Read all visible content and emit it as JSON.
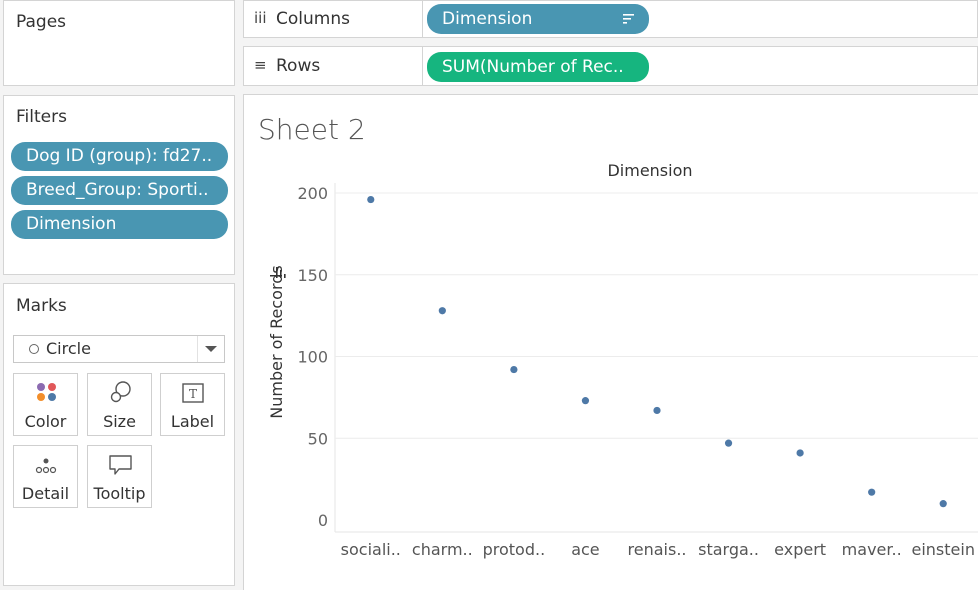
{
  "pages": {
    "title": "Pages"
  },
  "filters": {
    "title": "Filters",
    "items": [
      "Dog ID (group): fd27..",
      "Breed_Group: Sporti..",
      "Dimension"
    ]
  },
  "marks": {
    "title": "Marks",
    "type": "Circle",
    "buttons": [
      {
        "label": "Color",
        "icon": "color-icon"
      },
      {
        "label": "Size",
        "icon": "size-icon"
      },
      {
        "label": "Label",
        "icon": "label-icon"
      },
      {
        "label": "Detail",
        "icon": "detail-icon"
      },
      {
        "label": "Tooltip",
        "icon": "tooltip-icon"
      }
    ]
  },
  "shelves": {
    "columns": {
      "label": "Columns",
      "icon": "iii",
      "pill": "Dimension"
    },
    "rows": {
      "label": "Rows",
      "icon": "≡",
      "pill": "SUM(Number of Rec.."
    }
  },
  "sheet": {
    "title": "Sheet 2"
  },
  "colors": {
    "blue_pill": "#4996b2",
    "green_pill": "#16b57f",
    "mark": "#4e79a7"
  },
  "chart_data": {
    "type": "scatter",
    "title": "Dimension",
    "xlabel": "",
    "ylabel": "Number of Records",
    "categories": [
      "sociali..",
      "charm..",
      "protod..",
      "ace",
      "renais..",
      "starga..",
      "expert",
      "maver..",
      "einstein"
    ],
    "values": [
      196,
      128,
      92,
      73,
      67,
      47,
      41,
      17,
      10
    ],
    "yticks": [
      0,
      50,
      100,
      150,
      200
    ],
    "ylim": [
      0,
      200
    ],
    "grid": true
  }
}
